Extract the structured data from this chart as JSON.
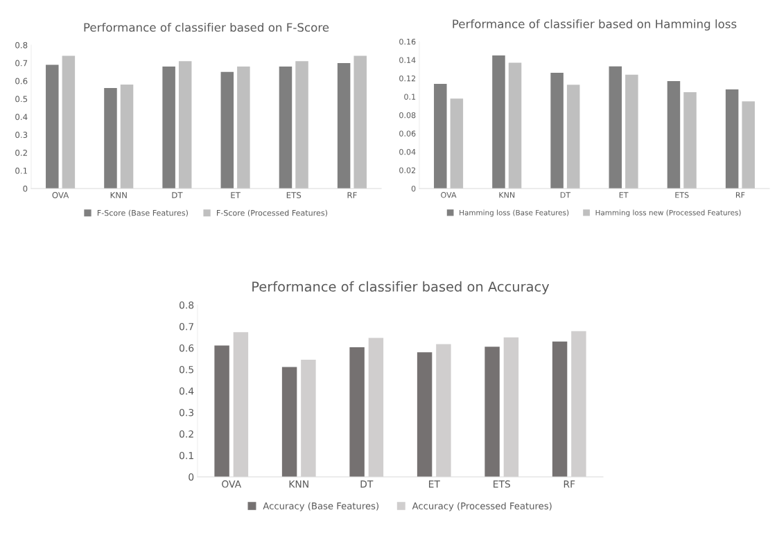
{
  "chart_data": [
    {
      "type": "bar",
      "title": "Performance of classifier based on F-Score",
      "categories": [
        "OVA",
        "KNN",
        "DT",
        "ET",
        "ETS",
        "RF"
      ],
      "series": [
        {
          "name": "F-Score (Base Features)",
          "color": "#7f7f7f",
          "values": [
            0.69,
            0.56,
            0.68,
            0.65,
            0.68,
            0.7
          ]
        },
        {
          "name": "F-Score (Processed Features)",
          "color": "#bfbfbf",
          "values": [
            0.74,
            0.58,
            0.71,
            0.68,
            0.71,
            0.74
          ]
        }
      ],
      "ylim": [
        0,
        0.8
      ],
      "yticks": [
        0,
        0.1,
        0.2,
        0.3,
        0.4,
        0.5,
        0.6,
        0.7,
        0.8
      ],
      "grid": false,
      "legend": "bottom"
    },
    {
      "type": "bar",
      "title": "Performance of classifier based on Hamming loss",
      "categories": [
        "OVA",
        "KNN",
        "DT",
        "ET",
        "ETS",
        "RF"
      ],
      "series": [
        {
          "name": "Hamming loss (Base Features)",
          "color": "#7f7f7f",
          "values": [
            0.114,
            0.145,
            0.126,
            0.133,
            0.117,
            0.108
          ]
        },
        {
          "name": "Hamming loss new (Processed Features)",
          "color": "#bfbfbf",
          "values": [
            0.098,
            0.137,
            0.113,
            0.124,
            0.105,
            0.095
          ]
        }
      ],
      "ylim": [
        0,
        0.16
      ],
      "yticks": [
        0,
        0.02,
        0.04,
        0.06,
        0.08,
        0.1,
        0.12,
        0.14,
        0.16
      ],
      "grid": false,
      "legend": "bottom"
    },
    {
      "type": "bar",
      "title": "Performance of classifier based on Accuracy",
      "categories": [
        "OVA",
        "KNN",
        "DT",
        "ET",
        "ETS",
        "RF"
      ],
      "series": [
        {
          "name": "Accuracy (Base Features)",
          "color": "#757171",
          "values": [
            0.611,
            0.511,
            0.603,
            0.58,
            0.606,
            0.63
          ]
        },
        {
          "name": "Accuracy (Processed Features)",
          "color": "#d0cece",
          "values": [
            0.673,
            0.545,
            0.647,
            0.618,
            0.649,
            0.678
          ]
        }
      ],
      "ylim": [
        0,
        0.8
      ],
      "yticks": [
        0,
        0.1,
        0.2,
        0.3,
        0.4,
        0.5,
        0.6,
        0.7,
        0.8
      ],
      "grid": false,
      "legend": "bottom"
    }
  ]
}
